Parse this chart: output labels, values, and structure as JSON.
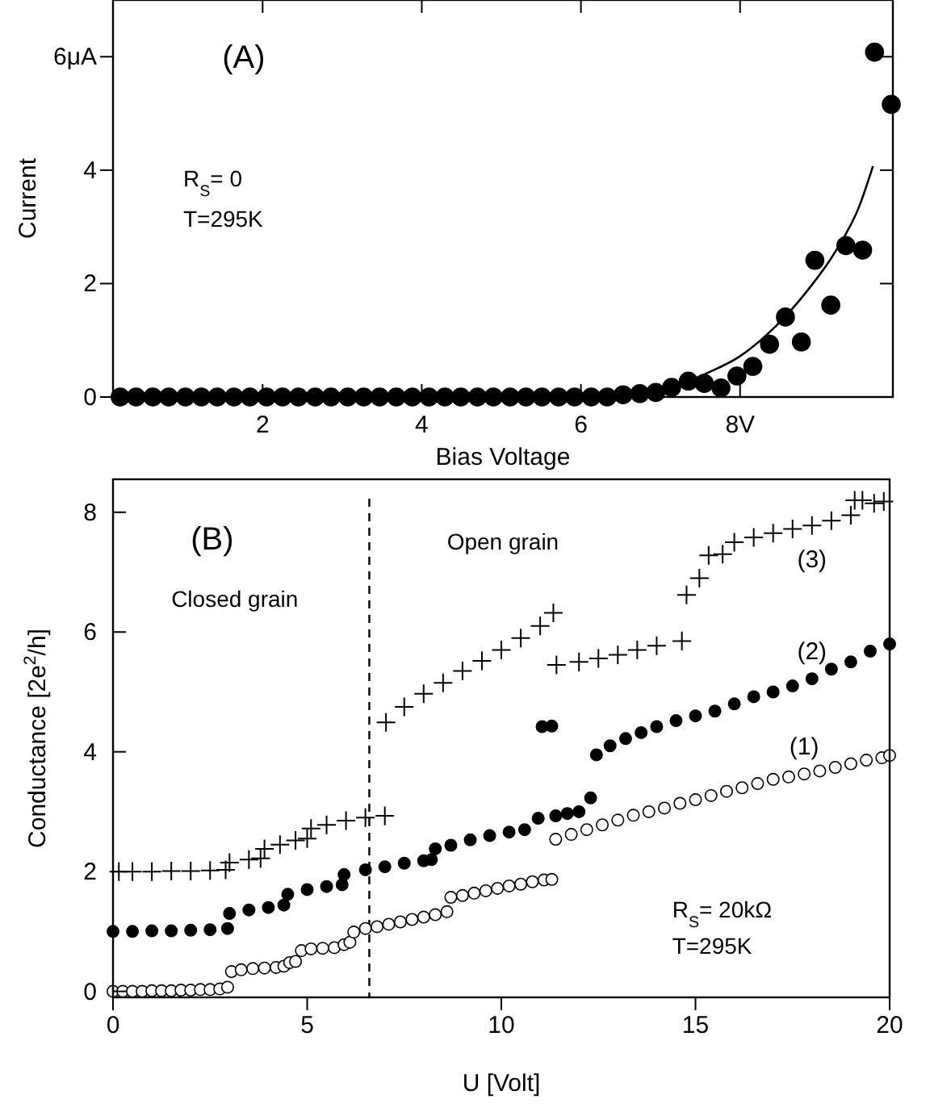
{
  "chart_data": [
    {
      "type": "scatter",
      "xlabel": "Bias Voltage",
      "ylabel": "Current",
      "annotations": [
        "(A)",
        "R$_{S}$= 0",
        "T=295K"
      ],
      "xlim": [
        0.12,
        9.92
      ],
      "ylim": [
        0,
        7
      ],
      "xticks": [
        2,
        4,
        6,
        {
          "value": 8,
          "label": "8V"
        }
      ],
      "yticks": [
        0,
        2,
        4,
        {
          "value": 6,
          "label": "6μA"
        }
      ],
      "series": [
        {
          "color": "#000000",
          "marker": "circle",
          "x": [
            0.21,
            0.41,
            0.62,
            0.82,
            1.03,
            1.23,
            1.43,
            1.64,
            1.84,
            2.05,
            2.25,
            2.45,
            2.66,
            2.86,
            3.07,
            3.27,
            3.47,
            3.68,
            3.88,
            4.09,
            4.29,
            4.49,
            4.7,
            4.9,
            5.11,
            5.31,
            5.51,
            5.72,
            5.92,
            6.13,
            6.33,
            6.53,
            6.74,
            6.94,
            7.14,
            7.35,
            7.55,
            7.76,
            7.96,
            8.16,
            8.37,
            8.57,
            8.77,
            8.94,
            9.14,
            9.33,
            9.54,
            9.69,
            9.9
          ],
          "values": [
            0,
            0,
            0,
            0,
            0,
            0,
            0,
            0,
            0,
            0,
            0,
            0,
            0,
            0,
            0,
            0,
            0,
            0,
            0,
            0,
            0,
            0,
            0,
            0,
            0,
            0,
            0,
            0,
            0,
            0,
            0,
            0.04,
            0.06,
            0.08,
            0.17,
            0.28,
            0.24,
            0.16,
            0.37,
            0.54,
            0.93,
            1.41,
            0.97,
            2.41,
            1.62,
            2.67,
            2.59,
            6.08,
            5.16
          ]
        },
        {
          "type": "line",
          "color": "#000000",
          "marker": "none",
          "x": [
            6.5,
            6.87,
            7.2,
            7.55,
            8.0,
            8.45,
            8.82,
            9.2,
            9.5,
            9.67
          ],
          "values": [
            0,
            0.08,
            0.2,
            0.4,
            0.72,
            1.25,
            1.83,
            2.57,
            3.37,
            4.07
          ]
        }
      ]
    },
    {
      "type": "scatter",
      "xlabel": "U [Volt]",
      "ylabel": "Conductance [2e$^{2}$/h]",
      "annotations": [
        "(B)",
        "Closed grain",
        "Open grain",
        "R$_{S}$= 20kΩ",
        "T=295K"
      ],
      "xlim": [
        0,
        20
      ],
      "ylim": [
        -0.1,
        8.55
      ],
      "xticks": [
        0,
        5,
        10,
        15,
        20
      ],
      "yticks": [
        0,
        2,
        4,
        6,
        8
      ],
      "ref_lines": [
        {
          "axis": "x",
          "value": 6.6,
          "line_style": "dashed",
          "color": "#000000"
        }
      ],
      "series": [
        {
          "name": "(1)",
          "color": "#ffffff",
          "marker": "circle",
          "x": [
            0,
            0.25,
            0.5,
            0.75,
            1.0,
            1.25,
            1.5,
            1.75,
            2.0,
            2.25,
            2.5,
            2.75,
            2.95,
            3.05,
            3.3,
            3.6,
            3.9,
            4.2,
            4.4,
            4.55,
            4.7,
            4.85,
            5.1,
            5.4,
            5.7,
            5.95,
            6.1,
            6.2,
            6.5,
            6.8,
            7.1,
            7.4,
            7.7,
            8.0,
            8.3,
            8.6,
            8.7,
            9.0,
            9.3,
            9.6,
            9.9,
            10.2,
            10.5,
            10.8,
            11.1,
            11.3,
            11.4,
            11.8,
            12.2,
            12.6,
            13.0,
            13.4,
            13.8,
            14.2,
            14.6,
            15.0,
            15.4,
            15.8,
            16.2,
            16.6,
            17.0,
            17.4,
            17.8,
            18.2,
            18.6,
            19.0,
            19.4,
            19.8,
            20.0
          ],
          "values": [
            0,
            0,
            0,
            0,
            0.01,
            0.01,
            0.01,
            0.02,
            0.02,
            0.03,
            0.03,
            0.04,
            0.07,
            0.33,
            0.36,
            0.38,
            0.39,
            0.4,
            0.42,
            0.48,
            0.5,
            0.68,
            0.71,
            0.72,
            0.73,
            0.78,
            0.82,
            0.99,
            1.05,
            1.08,
            1.12,
            1.16,
            1.2,
            1.24,
            1.28,
            1.33,
            1.57,
            1.6,
            1.64,
            1.68,
            1.72,
            1.76,
            1.79,
            1.83,
            1.86,
            1.87,
            2.54,
            2.62,
            2.7,
            2.78,
            2.86,
            2.94,
            3.0,
            3.06,
            3.14,
            3.2,
            3.27,
            3.34,
            3.4,
            3.47,
            3.54,
            3.58,
            3.63,
            3.68,
            3.74,
            3.8,
            3.86,
            3.9,
            3.94
          ]
        },
        {
          "name": "(2)",
          "color": "#000000",
          "marker": "circle",
          "x": [
            0,
            0.5,
            1.0,
            1.5,
            2.0,
            2.5,
            2.95,
            3.0,
            3.5,
            4.0,
            4.4,
            4.5,
            5.0,
            5.5,
            5.9,
            5.95,
            6.5,
            7.0,
            7.5,
            8.0,
            8.2,
            8.3,
            8.7,
            9.2,
            9.7,
            10.2,
            10.6,
            10.95,
            11.05,
            11.3,
            11.4,
            11.7,
            12.0,
            12.3,
            12.45,
            12.8,
            13.2,
            13.6,
            14.0,
            14.5,
            15.0,
            15.5,
            16.0,
            16.5,
            17.0,
            17.5,
            18.0,
            18.5,
            19.0,
            19.5,
            20.0
          ],
          "values": [
            1.0,
            1.0,
            1.01,
            1.01,
            1.02,
            1.03,
            1.05,
            1.3,
            1.36,
            1.4,
            1.44,
            1.62,
            1.7,
            1.75,
            1.78,
            1.95,
            2.03,
            2.08,
            2.14,
            2.18,
            2.2,
            2.38,
            2.44,
            2.53,
            2.6,
            2.66,
            2.7,
            2.89,
            4.42,
            4.43,
            2.93,
            2.97,
            3.0,
            3.23,
            3.95,
            4.1,
            4.22,
            4.32,
            4.42,
            4.52,
            4.6,
            4.68,
            4.8,
            4.92,
            5.0,
            5.1,
            5.22,
            5.38,
            5.5,
            5.68,
            5.8
          ]
        },
        {
          "name": "(3)",
          "color": "#000000",
          "marker": "cross",
          "x": [
            0.15,
            0.5,
            1.0,
            1.5,
            2.0,
            2.5,
            2.9,
            3.0,
            3.5,
            3.8,
            3.9,
            4.3,
            4.7,
            5.0,
            5.1,
            5.5,
            6.0,
            6.5,
            7.0,
            7.03,
            7.5,
            8.0,
            8.5,
            9.0,
            9.5,
            10.0,
            10.5,
            11.0,
            11.34,
            11.42,
            12.0,
            12.5,
            13.0,
            13.5,
            14.0,
            14.65,
            14.77,
            15.1,
            15.34,
            15.7,
            16.0,
            16.5,
            17.0,
            17.5,
            18.0,
            18.5,
            19.0,
            19.1,
            19.3,
            19.6,
            19.85
          ],
          "values": [
            2.0,
            2.0,
            2.0,
            2.01,
            2.01,
            2.02,
            2.03,
            2.15,
            2.2,
            2.22,
            2.38,
            2.45,
            2.52,
            2.55,
            2.72,
            2.78,
            2.85,
            2.9,
            2.93,
            4.49,
            4.75,
            4.97,
            5.15,
            5.35,
            5.52,
            5.7,
            5.9,
            6.1,
            6.32,
            5.45,
            5.5,
            5.56,
            5.62,
            5.7,
            5.77,
            5.85,
            6.62,
            6.9,
            7.28,
            7.3,
            7.5,
            7.58,
            7.65,
            7.72,
            7.78,
            7.86,
            7.95,
            8.2,
            8.2,
            8.15,
            8.18
          ]
        }
      ]
    }
  ]
}
